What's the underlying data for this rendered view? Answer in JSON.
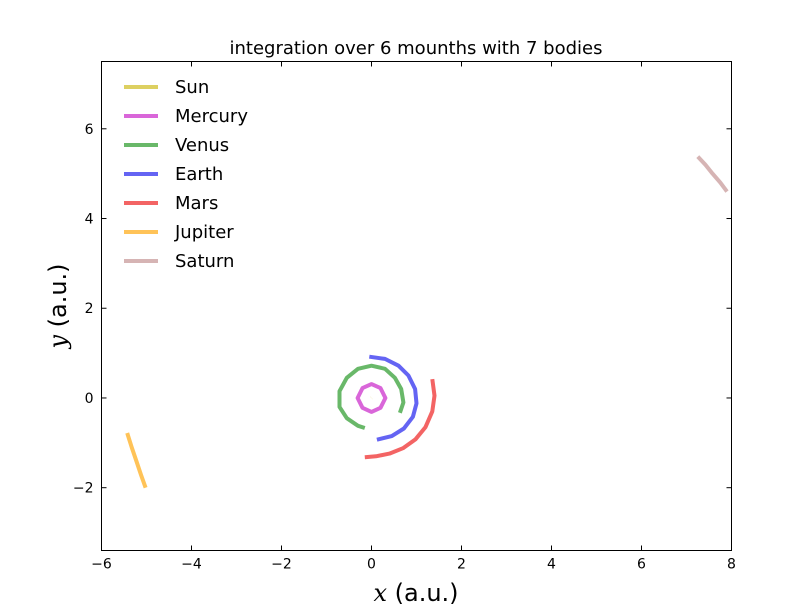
{
  "chart_data": {
    "type": "line",
    "title": "integration over 6 mounths with 7 bodies",
    "xlabel_var": "x",
    "xlabel_unit": " (a.u.)",
    "ylabel_var": "y",
    "ylabel_unit": " (a.u.)",
    "xlim": [
      -6,
      8
    ],
    "ylim": [
      -3.4,
      7.5
    ],
    "xticks": [
      -6,
      -4,
      -2,
      0,
      2,
      4,
      6,
      8
    ],
    "xtick_labels": [
      "−6",
      "−4",
      "−2",
      "0",
      "2",
      "4",
      "6",
      "8"
    ],
    "yticks": [
      -2,
      0,
      2,
      4,
      6
    ],
    "ytick_labels": [
      "−2",
      "0",
      "2",
      "4",
      "6"
    ],
    "grid": false,
    "legend_position": "top-left",
    "series": [
      {
        "name": "Sun",
        "color": "#d4c43a",
        "alpha": 0.8,
        "x": [
          0.0,
          0.003
        ],
        "y": [
          0.0,
          0.002
        ]
      },
      {
        "name": "Mercury",
        "color": "#cc33cc",
        "alpha": 0.75,
        "x": [
          0.31,
          0.2,
          0.0,
          -0.2,
          -0.31,
          -0.2,
          0.0,
          0.2,
          0.31,
          0.2,
          0.0,
          -0.2,
          -0.31,
          -0.2,
          0.0,
          0.2,
          0.31
        ],
        "y": [
          0.0,
          0.22,
          0.31,
          0.22,
          0.0,
          -0.22,
          -0.31,
          -0.22,
          0.0,
          0.22,
          0.31,
          0.22,
          0.0,
          -0.22,
          -0.31,
          -0.22,
          0.0
        ]
      },
      {
        "name": "Venus",
        "color": "#2a9a2a",
        "alpha": 0.7,
        "x": [
          0.63,
          0.71,
          0.66,
          0.52,
          0.3,
          0.0,
          -0.3,
          -0.55,
          -0.71,
          -0.71,
          -0.55,
          -0.3,
          -0.15
        ],
        "y": [
          -0.33,
          -0.1,
          0.2,
          0.45,
          0.65,
          0.72,
          0.65,
          0.45,
          0.15,
          -0.2,
          -0.45,
          -0.62,
          -0.67
        ]
      },
      {
        "name": "Earth",
        "color": "#2222ee",
        "alpha": 0.7,
        "x": [
          -0.05,
          0.3,
          0.6,
          0.82,
          0.97,
          1.0,
          0.92,
          0.72,
          0.45,
          0.12
        ],
        "y": [
          0.92,
          0.87,
          0.72,
          0.5,
          0.2,
          -0.12,
          -0.42,
          -0.68,
          -0.85,
          -0.93
        ]
      },
      {
        "name": "Mars",
        "color": "#ee2222",
        "alpha": 0.7,
        "x": [
          1.35,
          1.4,
          1.35,
          1.2,
          0.98,
          0.7,
          0.4,
          0.1,
          -0.15
        ],
        "y": [
          0.42,
          0.05,
          -0.3,
          -0.65,
          -0.92,
          -1.12,
          -1.24,
          -1.3,
          -1.32
        ]
      },
      {
        "name": "Jupiter",
        "color": "#ffaa11",
        "alpha": 0.7,
        "x": [
          -5.43,
          -5.33,
          -5.22,
          -5.12,
          -5.02
        ],
        "y": [
          -0.78,
          -1.1,
          -1.42,
          -1.72,
          -2.0
        ]
      },
      {
        "name": "Saturn",
        "color": "#c49494",
        "alpha": 0.7,
        "x": [
          7.25,
          7.42,
          7.58,
          7.75,
          7.9
        ],
        "y": [
          5.38,
          5.2,
          5.0,
          4.8,
          4.6
        ]
      }
    ]
  }
}
